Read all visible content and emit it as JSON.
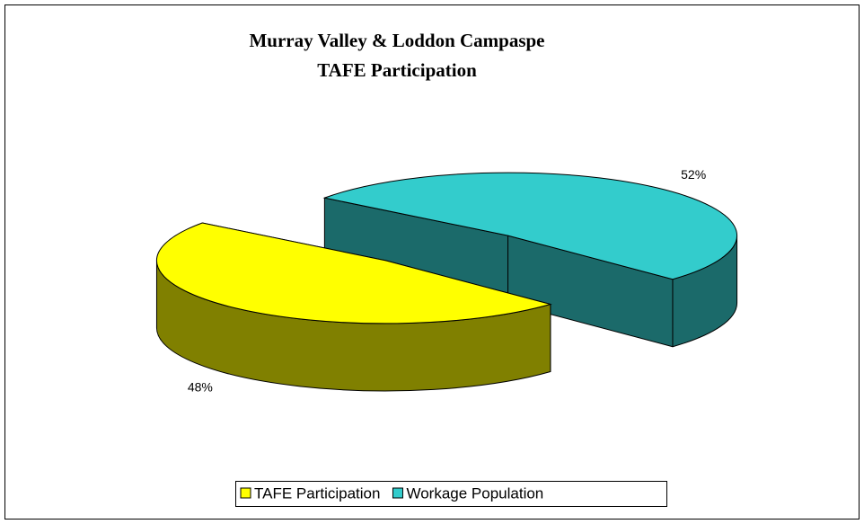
{
  "chart_data": {
    "type": "pie",
    "title": [
      "Murray Valley & Loddon Campaspe",
      "TAFE Participation"
    ],
    "categories": [
      "TAFE Participation",
      "Workage Population"
    ],
    "values": [
      48,
      52
    ],
    "value_labels": [
      "48%",
      "52%"
    ],
    "colors": [
      "#ffff00",
      "#33cccc"
    ],
    "side_colors": [
      "#808000",
      "#1b6a6a"
    ],
    "legend": "bottom"
  }
}
